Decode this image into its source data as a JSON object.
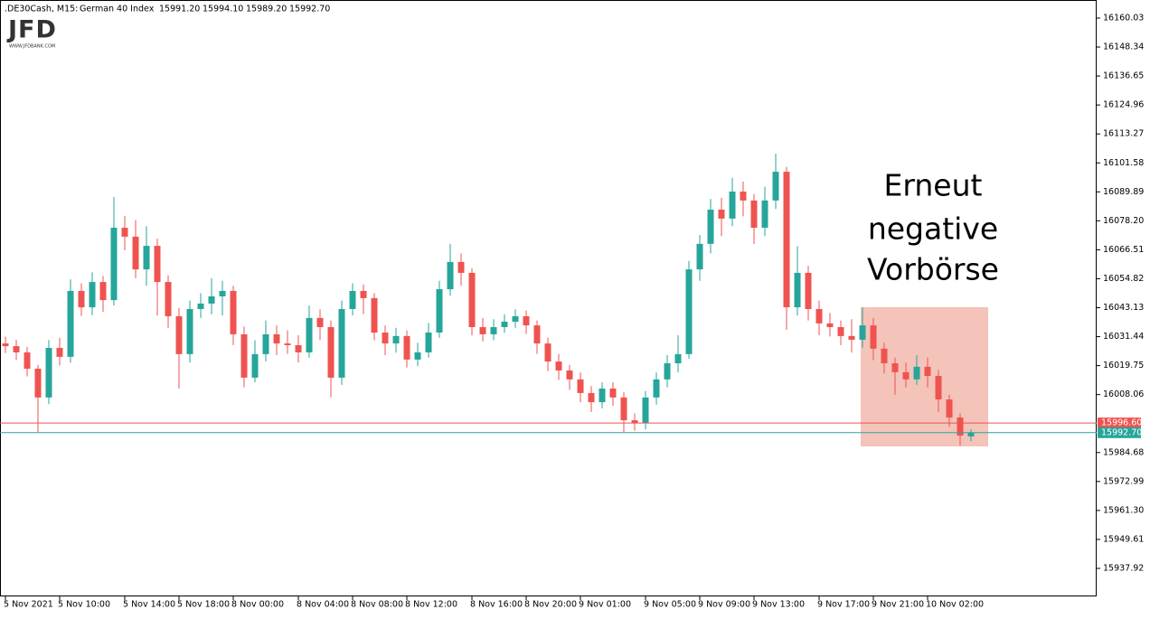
{
  "chart_data": {
    "type": "candlestick",
    "header": {
      "symbol": ".DE30Cash, M15:",
      "instrument": "German 40 Index",
      "ohlc": [
        {
          "value": 15991.2,
          "label": "15991.20"
        },
        {
          "value": 15994.1,
          "label": "15994.10"
        },
        {
          "value": 15989.2,
          "label": "15989.20"
        },
        {
          "value": 15992.7,
          "label": "15992.70"
        }
      ]
    },
    "logo": {
      "name": "JFD",
      "url": "WWW.JFDBANK.COM"
    },
    "annotation": [
      "Erneut",
      "negative",
      "Vorbörse"
    ],
    "up_color": "#26a69a",
    "down_color": "#ef5350",
    "categories": [
      "5 Nov 2021",
      null,
      null,
      null,
      null,
      "5 Nov 10:00",
      null,
      null,
      null,
      null,
      null,
      "5 Nov 14:00",
      null,
      null,
      null,
      null,
      "5 Nov 18:00",
      null,
      null,
      null,
      null,
      "8 Nov 00:00",
      null,
      null,
      null,
      null,
      null,
      "8 Nov 04:00",
      null,
      null,
      null,
      null,
      "8 Nov 08:00",
      null,
      null,
      null,
      null,
      "8 Nov 12:00",
      null,
      null,
      null,
      null,
      null,
      "8 Nov 16:00",
      null,
      null,
      null,
      null,
      "8 Nov 20:00",
      null,
      null,
      null,
      null,
      "9 Nov 01:00",
      null,
      null,
      null,
      null,
      null,
      "9 Nov 05:00",
      null,
      null,
      null,
      null,
      "9 Nov 09:00",
      null,
      null,
      null,
      null,
      "9 Nov 13:00",
      null,
      null,
      null,
      null,
      null,
      "9 Nov 17:00",
      null,
      null,
      null,
      null,
      "9 Nov 21:00",
      null,
      null,
      null,
      null,
      "10 Nov 02:00",
      null,
      null,
      null,
      null
    ],
    "open": [
      16028.7,
      16027.6,
      16025.1,
      16018.5,
      16006.9,
      16026.9,
      16023.3,
      16049.9,
      16043.3,
      16053.5,
      16046.2,
      16075.4,
      16071.8,
      16058.6,
      16068.1,
      16053.5,
      16039.7,
      16024.4,
      16042.6,
      16044.8,
      16047.7,
      16049.9,
      16032.4,
      16014.9,
      16024.4,
      16032.4,
      16028.7,
      16028.0,
      16025.1,
      16039.0,
      16035.3,
      16014.9,
      16042.6,
      16049.9,
      16047.0,
      16033.1,
      16028.7,
      16031.7,
      16022.2,
      16025.1,
      16033.1,
      16050.6,
      16061.6,
      16057.2,
      16035.3,
      16032.4,
      16035.3,
      16037.5,
      16039.7,
      16036.0,
      16028.7,
      16021.4,
      16017.8,
      16014.2,
      16008.7,
      16005.0,
      16010.5,
      16006.9,
      15997.7,
      15996.6,
      16006.9,
      16014.2,
      16020.7,
      16024.4,
      16058.6,
      16068.9,
      16082.7,
      16079.1,
      16090.0,
      16086.4,
      16075.4,
      16086.4,
      16098.0,
      16043.3,
      16057.2,
      16042.6,
      16036.8,
      16035.3,
      16031.7,
      16030.2,
      16036.0,
      16026.6,
      16020.7,
      16017.1,
      16014.2,
      16019.3,
      16015.6,
      16006.1,
      15998.8,
      15991.2
    ],
    "high": [
      16031.5,
      16030.2,
      16027.3,
      16020.0,
      16030.1,
      16031.0,
      16054.6,
      16053.0,
      16057.4,
      16056.0,
      16087.8,
      16080.2,
      16078.5,
      16076.0,
      16071.0,
      16056.2,
      16043.0,
      16046.0,
      16049.0,
      16055.0,
      16054.0,
      16052.0,
      16035.5,
      16030.0,
      16038.0,
      16036.0,
      16034.0,
      16032.0,
      16044.0,
      16042.5,
      16038.0,
      16046.0,
      16053.0,
      16052.5,
      16049.0,
      16036.0,
      16035.0,
      16034.0,
      16029.0,
      16037.0,
      16054.0,
      16068.9,
      16065.0,
      16059.0,
      16039.0,
      16038.5,
      16040.5,
      16042.5,
      16042.0,
      16038.0,
      16031.0,
      16024.5,
      16020.0,
      16017.0,
      16011.5,
      16013.0,
      16013.0,
      16009.0,
      16000.5,
      16009.5,
      16017.0,
      16024.0,
      16032.0,
      16062.0,
      16072.5,
      16087.0,
      16087.5,
      16095.5,
      16094.0,
      16089.0,
      16092.0,
      16105.3,
      16100.0,
      16068.0,
      16060.0,
      16046.0,
      16041.0,
      16038.0,
      16038.5,
      16043.3,
      16039.0,
      16029.0,
      16023.0,
      16021.0,
      16024.0,
      16023.0,
      16018.0,
      16008.0,
      16000.5,
      15994.1
    ],
    "low": [
      16024.8,
      16022.0,
      16015.4,
      15993.0,
      16004.2,
      16019.8,
      16021.0,
      16039.8,
      16040.1,
      16041.5,
      16044.0,
      16066.3,
      16055.0,
      16052.0,
      16040.0,
      16035.0,
      16010.5,
      16021.0,
      16039.0,
      16040.5,
      16040.0,
      16028.0,
      16011.0,
      16013.0,
      16021.5,
      16024.0,
      16024.5,
      16021.0,
      16023.0,
      16030.0,
      16007.0,
      16012.0,
      16040.0,
      16040.5,
      16030.0,
      16024.0,
      16025.0,
      16019.0,
      16019.5,
      16023.0,
      16031.0,
      16048.0,
      16052.0,
      16032.0,
      16029.5,
      16030.0,
      16033.0,
      16035.0,
      16032.5,
      16024.5,
      16017.5,
      16014.0,
      16010.0,
      16005.0,
      16001.0,
      16002.5,
      16003.5,
      15993.0,
      15993.5,
      15994.0,
      16004.0,
      16011.0,
      16017.0,
      16022.5,
      16054.0,
      16065.0,
      16072.0,
      16076.0,
      16080.0,
      16068.9,
      16072.0,
      16083.0,
      16034.2,
      16040.0,
      16038.0,
      16032.0,
      16031.5,
      16028.0,
      16025.0,
      16027.0,
      16022.0,
      16016.5,
      16008.0,
      16011.0,
      16012.0,
      16011.0,
      16001.0,
      15995.0,
      15987.5,
      15989.2
    ],
    "close": [
      16027.6,
      16025.1,
      16018.5,
      16006.9,
      16026.9,
      16023.3,
      16049.9,
      16043.3,
      16053.5,
      16046.2,
      16075.4,
      16071.8,
      16058.6,
      16068.1,
      16053.5,
      16039.7,
      16024.4,
      16042.6,
      16044.8,
      16047.7,
      16049.9,
      16032.4,
      16014.9,
      16024.4,
      16032.4,
      16028.7,
      16028.0,
      16025.1,
      16039.0,
      16035.3,
      16014.9,
      16042.6,
      16049.9,
      16047.0,
      16033.1,
      16028.7,
      16031.7,
      16022.2,
      16025.1,
      16033.1,
      16050.6,
      16061.6,
      16057.2,
      16035.3,
      16032.4,
      16035.3,
      16037.5,
      16039.7,
      16036.0,
      16028.7,
      16021.4,
      16017.8,
      16014.2,
      16008.7,
      16005.0,
      16010.5,
      16006.9,
      15997.7,
      15996.6,
      16006.9,
      16014.2,
      16020.7,
      16024.4,
      16058.6,
      16068.9,
      16082.7,
      16079.1,
      16090.0,
      16086.4,
      16075.4,
      16086.4,
      16098.0,
      16043.3,
      16057.2,
      16042.6,
      16036.8,
      16035.3,
      16031.7,
      16030.2,
      16036.0,
      16026.6,
      16020.7,
      16017.1,
      16014.2,
      16019.3,
      16015.6,
      16006.1,
      15998.8,
      15991.5,
      15992.7
    ],
    "ylim": [
      15926.61,
      16167.32
    ],
    "yticks": [
      16160.03,
      16148.34,
      16136.65,
      16124.96,
      16113.27,
      16101.58,
      16089.89,
      {
        "value": 16078.2,
        "label": "16078.20"
      },
      16066.51,
      16054.82,
      16043.13,
      16031.44,
      16019.75,
      16008.06,
      15984.68,
      15972.99,
      {
        "value": 15961.3,
        "label": "15961.30"
      },
      15949.61,
      15937.92
    ],
    "price_lines": [
      {
        "value": 15996.6,
        "label": "15996.60",
        "color": "#ef5350"
      },
      {
        "value": 15992.7,
        "label": "15992.70",
        "color": "#26a69a"
      }
    ]
  }
}
